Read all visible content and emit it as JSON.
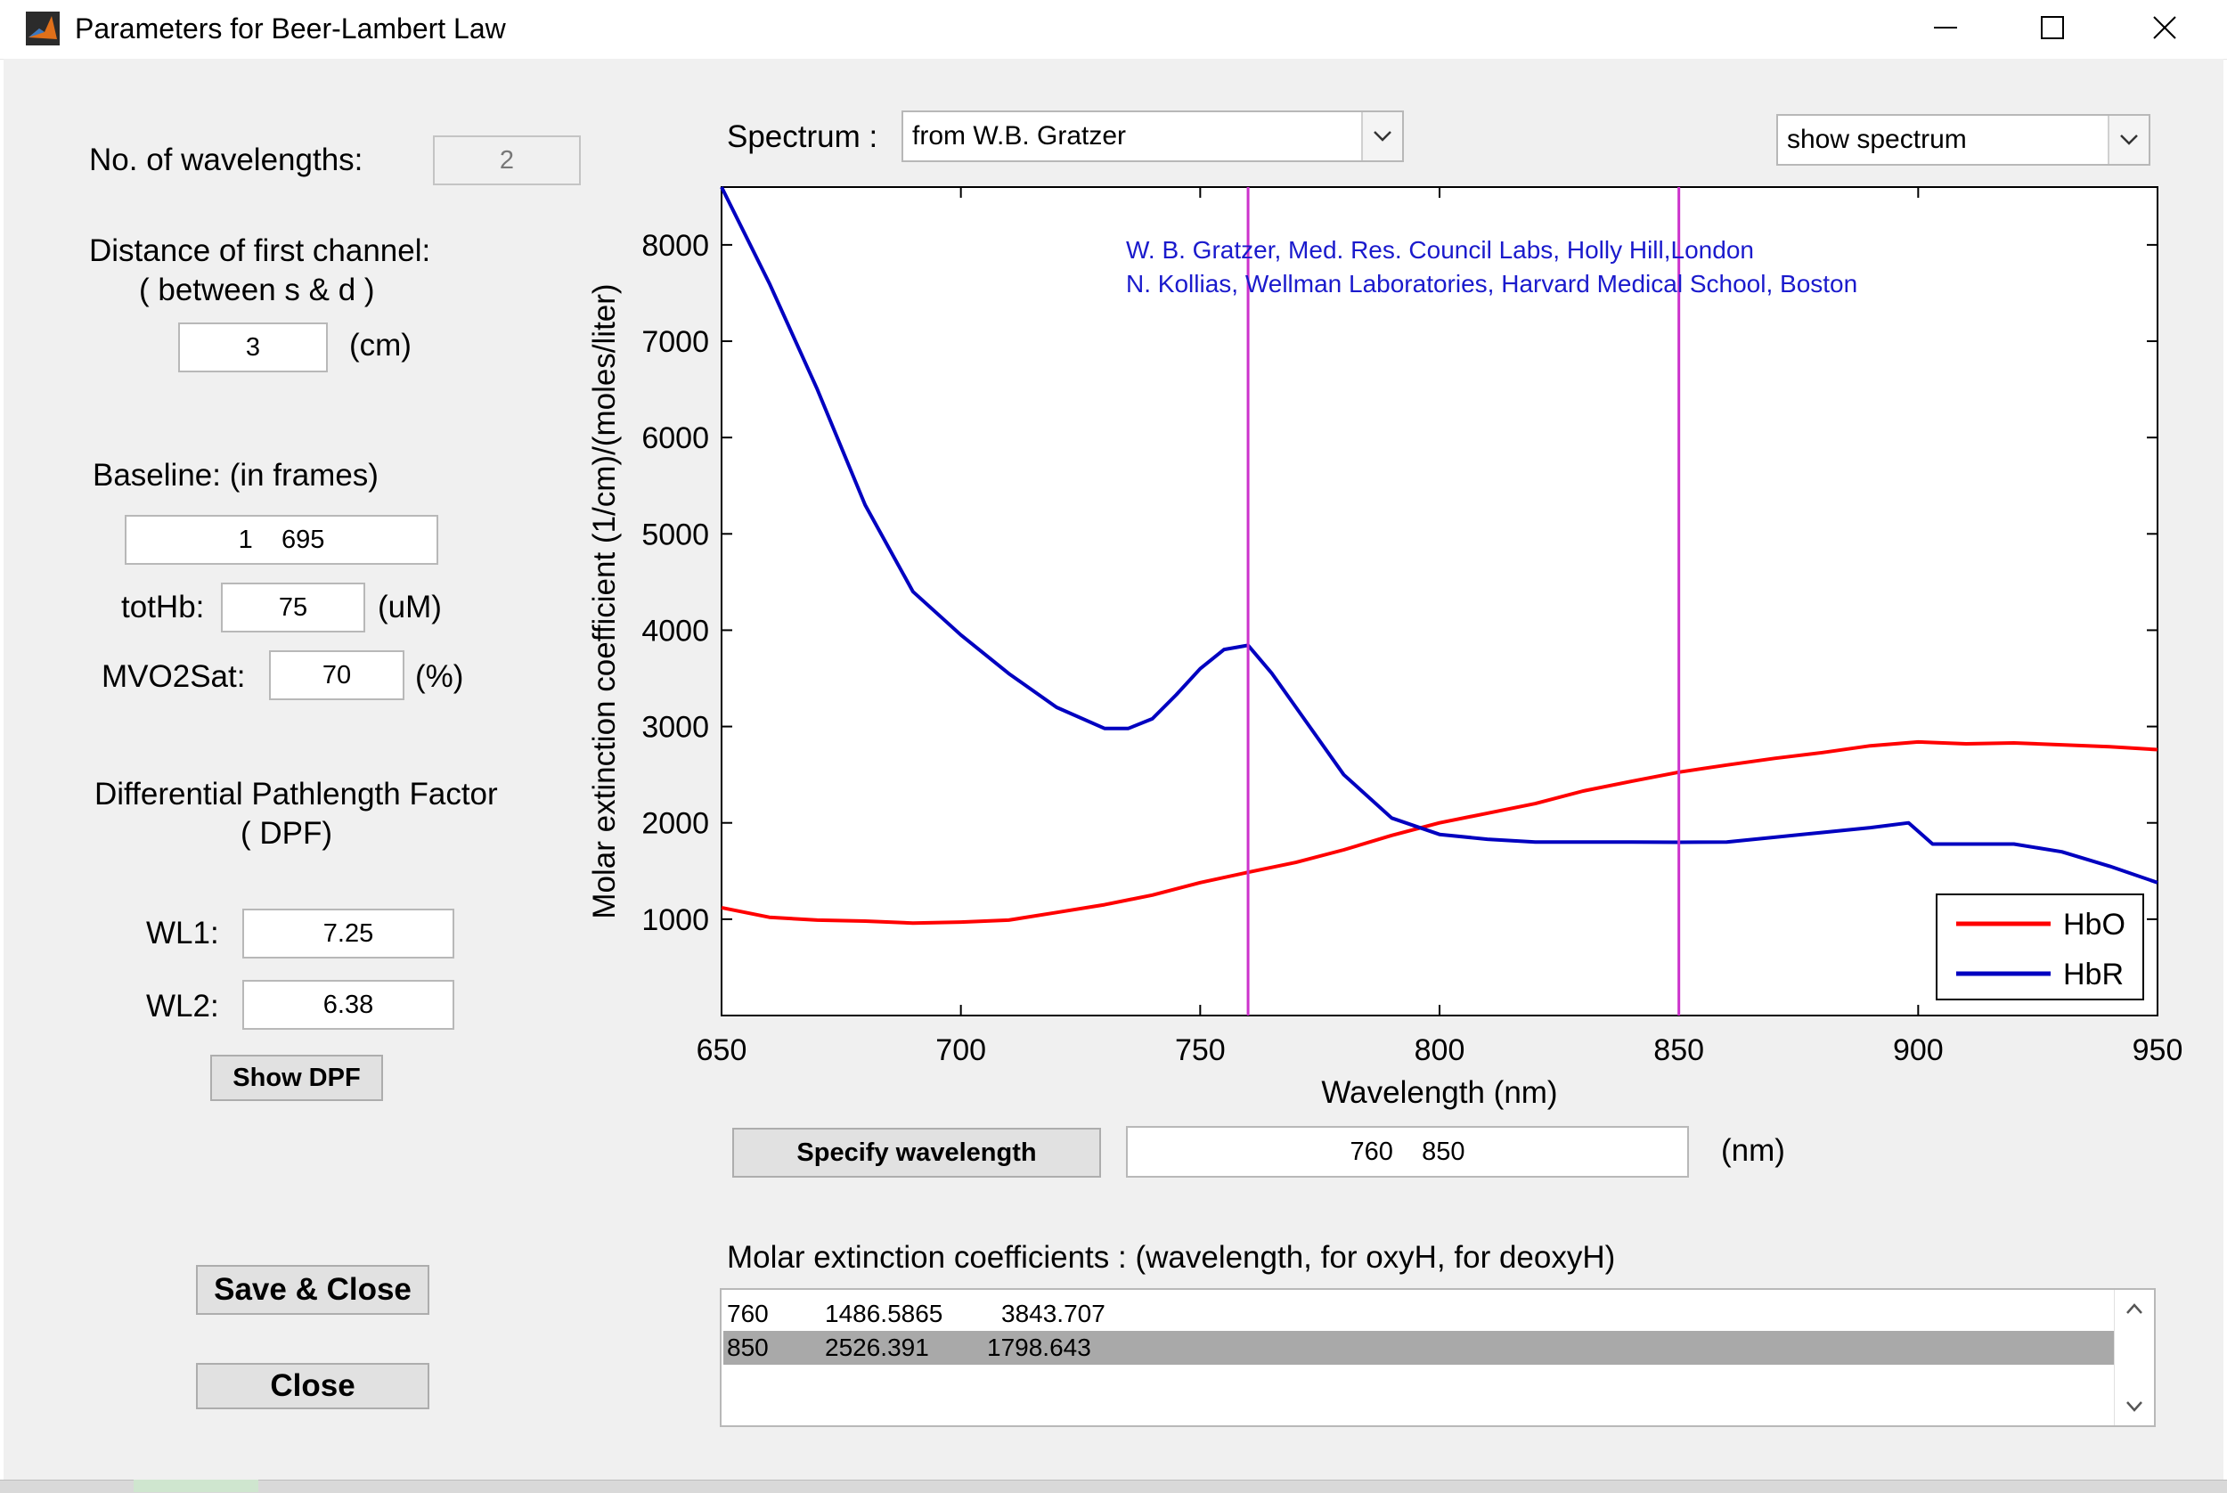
{
  "window": {
    "title": "Parameters for Beer-Lambert Law"
  },
  "left": {
    "num_wavelengths_label": "No. of wavelengths:",
    "num_wavelengths_value": "2",
    "distance_label": "Distance of first channel:",
    "distance_sublabel": "( between s & d )",
    "distance_value": "3",
    "distance_unit": "(cm)",
    "baseline_label": "Baseline:  (in frames)",
    "baseline_value": "1    695",
    "tothb_label": "totHb:",
    "tothb_value": "75",
    "tothb_unit": "(uM)",
    "mvo2sat_label": "MVO2Sat:",
    "mvo2sat_value": "70",
    "mvo2sat_unit": "(%)",
    "dpf_label": "Differential Pathlength Factor",
    "dpf_sublabel": "( DPF)",
    "wl1_label": "WL1:",
    "wl1_value": "7.25",
    "wl2_label": "WL2:",
    "wl2_value": "6.38",
    "show_dpf_button": "Show DPF",
    "save_close_button": "Save & Close",
    "close_button": "Close"
  },
  "top": {
    "spectrum_label": "Spectrum :",
    "spectrum_select": "from  W.B. Gratzer",
    "view_select": "show spectrum"
  },
  "chart_data": {
    "type": "line",
    "xlabel": "Wavelength  (nm)",
    "ylabel": "Molar extinction coefficient   (1/cm)/(moles/liter)",
    "xlim": [
      650,
      950
    ],
    "ylim": [
      0,
      8600
    ],
    "xticks": [
      650,
      700,
      750,
      800,
      850,
      900,
      950
    ],
    "yticks": [
      1000,
      2000,
      3000,
      4000,
      5000,
      6000,
      7000,
      8000
    ],
    "grid": false,
    "legend_position": "bottom-right",
    "annotations": [
      "W. B. Gratzer, Med. Res. Council Labs, Holly Hill,London",
      "N. Kollias, Wellman Laboratories, Harvard Medical School, Boston"
    ],
    "vlines": [
      760,
      850
    ],
    "vline_color": "#cc33cc",
    "series": [
      {
        "name": "HbO",
        "color": "#ff0000",
        "x": [
          650,
          660,
          670,
          680,
          690,
          700,
          710,
          720,
          730,
          740,
          750,
          760,
          770,
          780,
          790,
          800,
          810,
          820,
          830,
          840,
          850,
          860,
          870,
          880,
          890,
          900,
          910,
          920,
          930,
          940,
          950
        ],
        "y": [
          1120,
          1020,
          990,
          980,
          960,
          970,
          990,
          1070,
          1150,
          1250,
          1380,
          1487,
          1590,
          1720,
          1870,
          2000,
          2100,
          2200,
          2330,
          2430,
          2526,
          2600,
          2670,
          2730,
          2800,
          2840,
          2820,
          2830,
          2810,
          2790,
          2760
        ]
      },
      {
        "name": "HbR",
        "color": "#0000c0",
        "x": [
          650,
          660,
          670,
          680,
          690,
          700,
          710,
          720,
          730,
          735,
          740,
          745,
          750,
          755,
          760,
          765,
          770,
          780,
          790,
          800,
          810,
          820,
          830,
          840,
          850,
          860,
          870,
          880,
          890,
          898,
          903,
          910,
          920,
          930,
          940,
          950
        ],
        "y": [
          8600,
          7600,
          6500,
          5300,
          4400,
          3950,
          3550,
          3200,
          2980,
          2980,
          3080,
          3330,
          3600,
          3800,
          3843,
          3550,
          3200,
          2500,
          2050,
          1880,
          1830,
          1800,
          1800,
          1800,
          1799,
          1800,
          1850,
          1900,
          1950,
          2000,
          1780,
          1780,
          1780,
          1700,
          1550,
          1380
        ]
      }
    ]
  },
  "wavelength": {
    "specify_button": "Specify wavelength",
    "value": "760    850",
    "unit": "(nm)"
  },
  "coefficients": {
    "label": "Molar extinction coefficients :  (wavelength,    for oxyH,    for deoxyH)",
    "rows": [
      [
        "760",
        "1486.5865",
        "3843.707"
      ],
      [
        "850",
        "2526.391",
        "1798.643"
      ]
    ],
    "selected_row": 1
  }
}
